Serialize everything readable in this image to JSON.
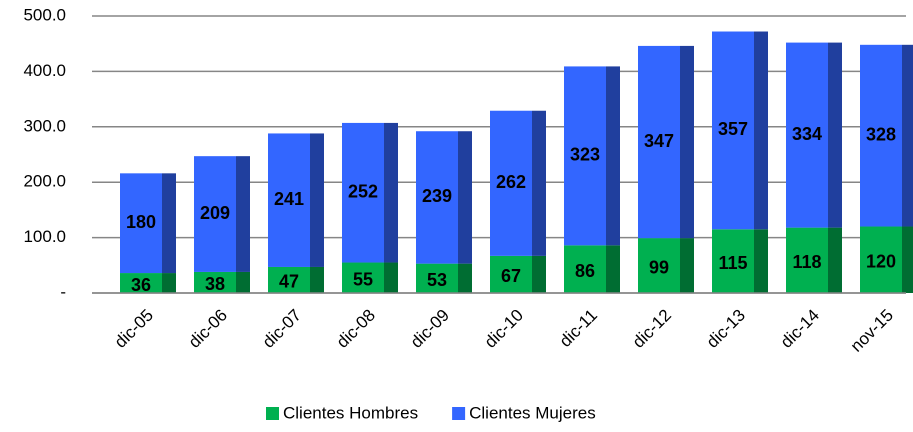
{
  "chart_data": {
    "type": "stacked_bar",
    "categories": [
      "dic-05",
      "dic-06",
      "dic-07",
      "dic-08",
      "dic-09",
      "dic-10",
      "dic-11",
      "dic-12",
      "dic-13",
      "dic-14",
      "nov-15"
    ],
    "series": [
      {
        "name": "Clientes Hombres",
        "color": "#00b050",
        "values": [
          36,
          38,
          47,
          55,
          53,
          67,
          86,
          99,
          115,
          118,
          120
        ]
      },
      {
        "name": "Clientes Mujeres",
        "color": "#3366ff",
        "values": [
          180,
          209,
          241,
          252,
          239,
          262,
          323,
          347,
          357,
          334,
          328
        ]
      }
    ],
    "ylim": [
      0,
      500
    ],
    "yticks": [
      {
        "value": 0,
        "label": "-"
      },
      {
        "value": 100,
        "label": "100.0"
      },
      {
        "value": 200,
        "label": "200.0"
      },
      {
        "value": 300,
        "label": "300.0"
      },
      {
        "value": 400,
        "label": "400.0"
      },
      {
        "value": 500,
        "label": "500.0"
      }
    ],
    "grid": true,
    "legend": "bottom"
  }
}
